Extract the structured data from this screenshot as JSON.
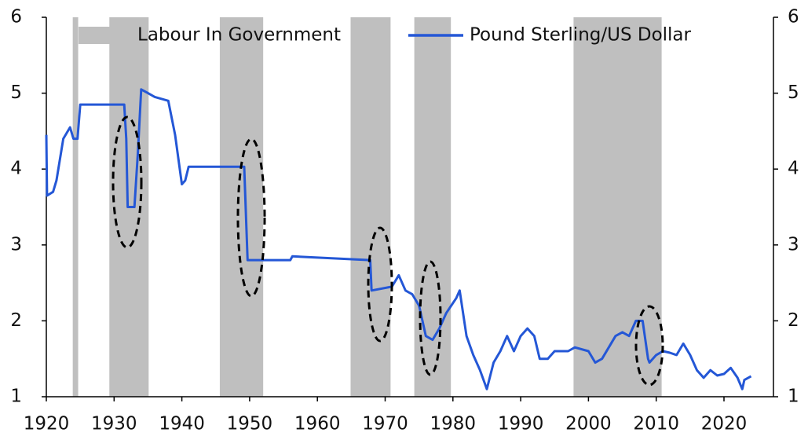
{
  "chart_data": {
    "type": "line",
    "bands": {
      "name": "Labour In Government",
      "color": "#bfbfbf",
      "ranges": [
        [
          1923.9,
          1924.7
        ],
        [
          1929.3,
          1935.1
        ],
        [
          1945.6,
          1952.0
        ],
        [
          1964.9,
          1970.8
        ],
        [
          1974.3,
          1979.7
        ],
        [
          1997.8,
          2010.8
        ]
      ]
    },
    "series": [
      {
        "name": "Pound Sterling/US Dollar",
        "color": "#2457d6",
        "x": [
          1920,
          1920.1,
          1921,
          1921.5,
          1922.5,
          1923.5,
          1924,
          1924.6,
          1925,
          1931.5,
          1931.8,
          1932,
          1933,
          1933.5,
          1934,
          1935,
          1936,
          1938,
          1939,
          1940,
          1940.5,
          1941,
          1949.2,
          1949.7,
          1956,
          1956.3,
          1967.8,
          1968,
          1971,
          1972,
          1973,
          1974,
          1975,
          1976,
          1977,
          1978,
          1979,
          1980.5,
          1981,
          1982,
          1983,
          1984,
          1985,
          1986,
          1987,
          1988,
          1989,
          1990,
          1991,
          1992,
          1992.8,
          1994,
          1995,
          1997,
          1998,
          2000,
          2001,
          2002,
          2003,
          2004,
          2005,
          2006,
          2007,
          2008,
          2008.8,
          2009,
          2010,
          2011,
          2012,
          2013,
          2014,
          2015,
          2016,
          2017,
          2018,
          2019,
          2020,
          2021,
          2022,
          2022.7,
          2023,
          2024
        ],
        "values": [
          4.45,
          3.65,
          3.7,
          3.85,
          4.4,
          4.55,
          4.4,
          4.4,
          4.85,
          4.85,
          4.4,
          3.5,
          3.5,
          4.2,
          5.05,
          5.0,
          4.95,
          4.9,
          4.45,
          3.8,
          3.85,
          4.03,
          4.03,
          2.8,
          2.8,
          2.85,
          2.8,
          2.4,
          2.45,
          2.6,
          2.4,
          2.35,
          2.2,
          1.8,
          1.75,
          1.9,
          2.1,
          2.3,
          2.4,
          1.8,
          1.55,
          1.35,
          1.1,
          1.45,
          1.6,
          1.8,
          1.6,
          1.8,
          1.9,
          1.8,
          1.5,
          1.5,
          1.6,
          1.6,
          1.65,
          1.6,
          1.45,
          1.5,
          1.65,
          1.8,
          1.85,
          1.8,
          2.0,
          2.0,
          1.5,
          1.45,
          1.55,
          1.6,
          1.58,
          1.55,
          1.7,
          1.55,
          1.35,
          1.25,
          1.35,
          1.28,
          1.3,
          1.38,
          1.25,
          1.1,
          1.22,
          1.27
        ]
      }
    ],
    "xlim": [
      1920,
      2027.3
    ],
    "xticks": [
      1920,
      1930,
      1940,
      1950,
      1960,
      1970,
      1980,
      1990,
      2000,
      2010,
      2020
    ],
    "ylim": [
      1,
      6
    ],
    "yticks": [
      1,
      2,
      3,
      4,
      5,
      6
    ],
    "y2lim": [
      1,
      6
    ],
    "y2ticks": [
      1,
      2,
      3,
      4,
      5,
      6
    ]
  }
}
